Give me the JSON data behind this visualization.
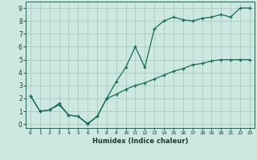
{
  "xlabel": "Humidex (Indice chaleur)",
  "xlim": [
    -0.5,
    23.5
  ],
  "ylim": [
    -0.3,
    9.5
  ],
  "xticks": [
    0,
    1,
    2,
    3,
    4,
    5,
    6,
    7,
    8,
    9,
    10,
    11,
    12,
    13,
    14,
    15,
    16,
    17,
    18,
    19,
    20,
    21,
    22,
    23
  ],
  "yticks": [
    0,
    1,
    2,
    3,
    4,
    5,
    6,
    7,
    8,
    9
  ],
  "bg_color": "#cce8e0",
  "grid_color": "#aaccc4",
  "line_color": "#1a6b5a",
  "line1_x": [
    0,
    1,
    2,
    3,
    4,
    5,
    6,
    7,
    8,
    9,
    10,
    11,
    12,
    13,
    14,
    15,
    16,
    17,
    18,
    19,
    20,
    21,
    22,
    23
  ],
  "line1_y": [
    2.2,
    1.0,
    1.1,
    1.6,
    0.7,
    0.6,
    0.0,
    0.6,
    2.0,
    3.3,
    4.4,
    6.0,
    4.4,
    7.4,
    8.0,
    8.3,
    8.1,
    8.0,
    8.2,
    8.3,
    8.5,
    8.3,
    9.0,
    9.0
  ],
  "line2_x": [
    0,
    1,
    2,
    3,
    4,
    5,
    6,
    7,
    8,
    9,
    10,
    11,
    12,
    13,
    14,
    15,
    16,
    17,
    18,
    19,
    20,
    21,
    22,
    23
  ],
  "line2_y": [
    2.2,
    1.0,
    1.1,
    1.5,
    0.7,
    0.6,
    0.05,
    0.6,
    2.0,
    2.3,
    2.7,
    3.0,
    3.2,
    3.5,
    3.8,
    4.1,
    4.3,
    4.6,
    4.7,
    4.9,
    5.0,
    5.0,
    5.0,
    5.0
  ]
}
